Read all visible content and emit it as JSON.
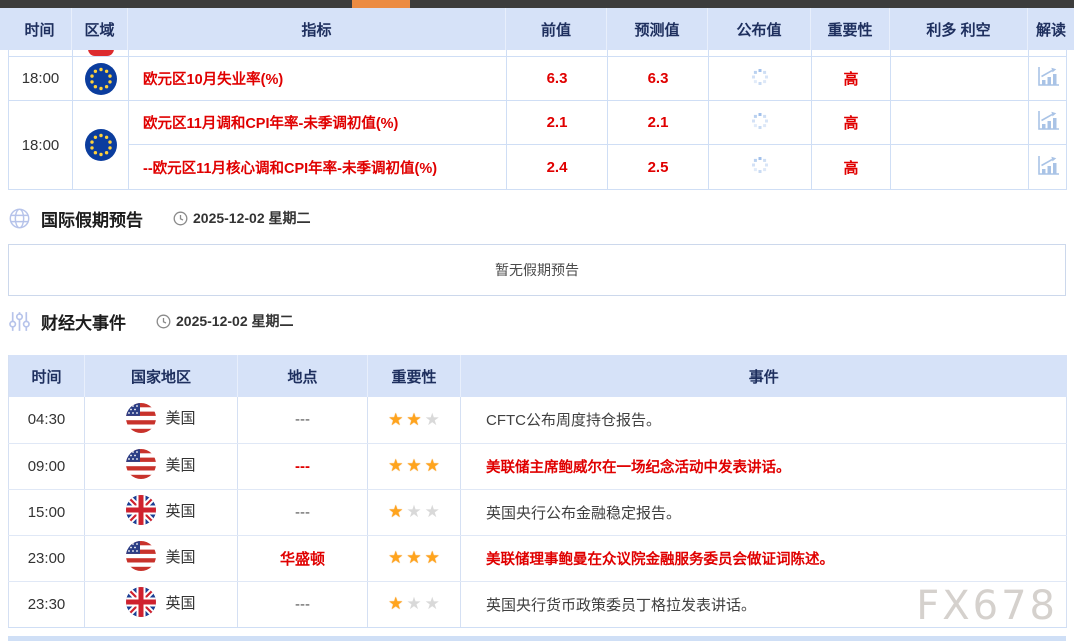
{
  "calendar": {
    "headers": [
      "时间",
      "区域",
      "指标",
      "前值",
      "预测值",
      "公布值",
      "重要性",
      "利多 利空",
      "解读"
    ],
    "rows": [
      {
        "time": "18:00",
        "region": "eurozone",
        "indicator": "欧元区10月失业率(%)",
        "previous": "6.3",
        "forecast": "6.3",
        "published": "loading",
        "importance": "高"
      },
      {
        "time": "18:00",
        "region": "eurozone",
        "indicator": "欧元区11月调和CPI年率-未季调初值(%)",
        "previous": "2.1",
        "forecast": "2.1",
        "published": "loading",
        "importance": "高"
      },
      {
        "indicator": "--欧元区11月核心调和CPI年率-未季调初值(%)",
        "previous": "2.4",
        "forecast": "2.5",
        "published": "loading",
        "importance": "高"
      }
    ]
  },
  "holiday": {
    "title": "国际假期预告",
    "date": "2025-12-02 星期二",
    "empty_message": "暂无假期预告"
  },
  "events": {
    "title": "财经大事件",
    "date": "2025-12-02 星期二",
    "headers": [
      "时间",
      "国家地区",
      "地点",
      "重要性",
      "事件"
    ],
    "rows": [
      {
        "time": "04:30",
        "country": "美国",
        "flag": "us",
        "location": "---",
        "stars": 2,
        "event": "CFTC公布周度持仓报告。"
      },
      {
        "time": "09:00",
        "country": "美国",
        "flag": "us",
        "location": "---",
        "stars": 3,
        "event": "美联储主席鲍威尔在一场纪念活动中发表讲话。"
      },
      {
        "time": "15:00",
        "country": "英国",
        "flag": "uk",
        "location": "---",
        "stars": 1,
        "event": "英国央行公布金融稳定报告。"
      },
      {
        "time": "23:00",
        "country": "美国",
        "flag": "us",
        "location": "华盛顿",
        "stars": 3,
        "event": "美联储理事鲍曼在众议院金融服务委员会做证词陈述。"
      },
      {
        "time": "23:30",
        "country": "英国",
        "flag": "uk",
        "location": "---",
        "stars": 1,
        "event": "英国央行货币政策委员丁格拉发表讲话。"
      }
    ]
  },
  "watermark": "FX678",
  "colors": {
    "accent_red": "#e00000",
    "table_header_bg": "#d6e2f8",
    "header_text": "#1e2f5e",
    "star_on": "#ffa41d",
    "star_off": "#d9d9d9",
    "topbar": "#3c3c3c",
    "topbar_thumb": "#ec8b41",
    "icon_blue": "#a9c3e6"
  }
}
